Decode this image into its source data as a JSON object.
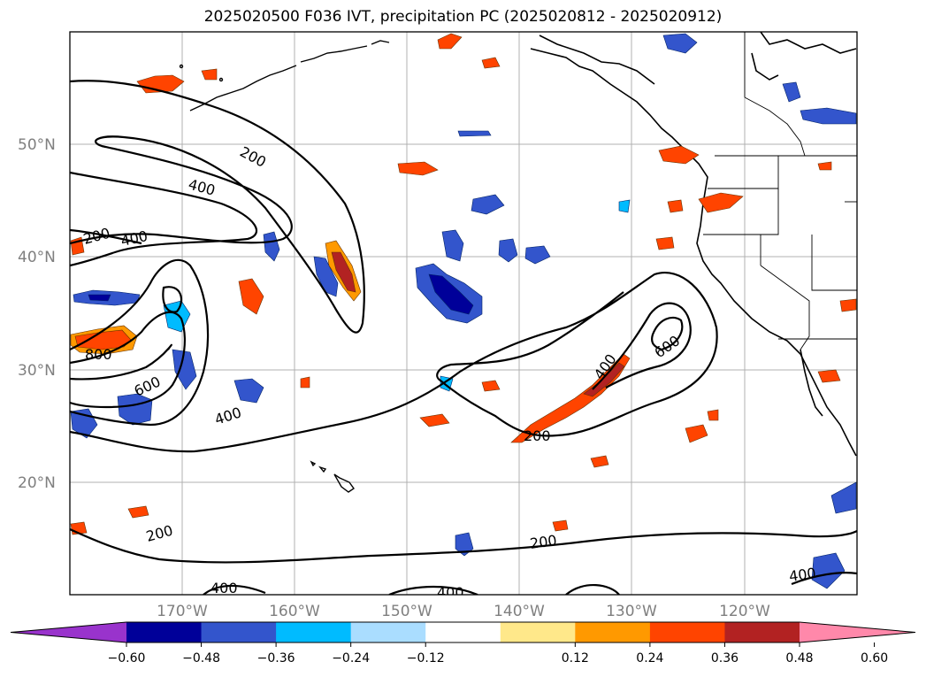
{
  "title": "2025020500 F036 IVT, precipitation PC (2025020812 - 2025020912)",
  "map": {
    "lon_range": [
      -180,
      -110
    ],
    "lat_range": [
      10,
      60
    ],
    "lat_labels": [
      "50°N",
      "40°N",
      "30°N",
      "20°N"
    ],
    "lon_labels": [
      "170°W",
      "160°W",
      "150°W",
      "140°W",
      "130°W",
      "120°W"
    ],
    "lat_values": [
      50,
      40,
      30,
      20
    ],
    "lon_values": [
      -170,
      -160,
      -150,
      -140,
      -130,
      -120
    ],
    "gridlines": true
  },
  "ivt_contours": {
    "levels": [
      200,
      400,
      600,
      800
    ],
    "labels": [
      "200",
      "400",
      "200",
      "400",
      "800",
      "600",
      "400",
      "200",
      "400",
      "400",
      "200",
      "400",
      "600",
      "200",
      "400"
    ]
  },
  "colorbar": {
    "ticks": [
      "−0.60",
      "−0.48",
      "−0.36",
      "−0.24",
      "−0.12",
      "0.12",
      "0.24",
      "0.36",
      "0.48",
      "0.60"
    ],
    "colors": [
      "#9933cc",
      "#000099",
      "#3355cc",
      "#00bbff",
      "#aaddff",
      "#ffffff",
      "#ffe88a",
      "#ff9900",
      "#ff4400",
      "#b22222",
      "#ff88aa"
    ]
  }
}
